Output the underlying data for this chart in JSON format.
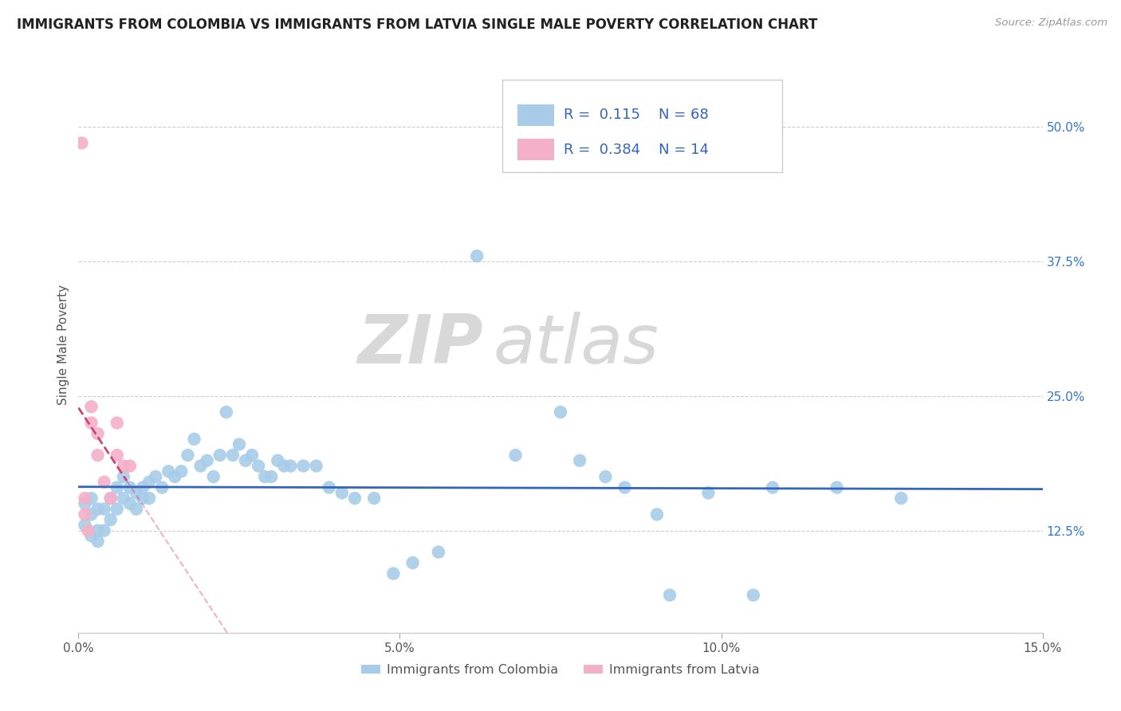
{
  "title": "IMMIGRANTS FROM COLOMBIA VS IMMIGRANTS FROM LATVIA SINGLE MALE POVERTY CORRELATION CHART",
  "source": "Source: ZipAtlas.com",
  "ylabel": "Single Male Poverty",
  "xlim": [
    0,
    0.15
  ],
  "ylim": [
    0.03,
    0.565
  ],
  "xticks": [
    0.0,
    0.05,
    0.1,
    0.15
  ],
  "xticklabels": [
    "0.0%",
    "5.0%",
    "10.0%",
    "15.0%"
  ],
  "yticks_right": [
    0.125,
    0.25,
    0.375,
    0.5
  ],
  "ytick_labels_right": [
    "12.5%",
    "25.0%",
    "37.5%",
    "50.0%"
  ],
  "colombia_color": "#a8cce8",
  "latvia_color": "#f4b0c8",
  "trendline_colombia_color": "#3366bb",
  "trendline_latvia_color": "#cc4477",
  "watermark_zip": "ZIP",
  "watermark_atlas": "atlas",
  "legend_R_colombia": "0.115",
  "legend_N_colombia": "68",
  "legend_R_latvia": "0.384",
  "legend_N_latvia": "14",
  "colombia_x": [
    0.001,
    0.001,
    0.002,
    0.002,
    0.002,
    0.003,
    0.003,
    0.003,
    0.004,
    0.004,
    0.005,
    0.005,
    0.006,
    0.006,
    0.007,
    0.007,
    0.008,
    0.008,
    0.009,
    0.009,
    0.01,
    0.01,
    0.011,
    0.011,
    0.012,
    0.013,
    0.014,
    0.015,
    0.016,
    0.017,
    0.018,
    0.019,
    0.02,
    0.021,
    0.022,
    0.023,
    0.024,
    0.025,
    0.026,
    0.027,
    0.028,
    0.029,
    0.03,
    0.031,
    0.032,
    0.033,
    0.035,
    0.037,
    0.039,
    0.041,
    0.043,
    0.046,
    0.049,
    0.052,
    0.056,
    0.062,
    0.068,
    0.075,
    0.082,
    0.09,
    0.098,
    0.108,
    0.118,
    0.128,
    0.078,
    0.085,
    0.092,
    0.105
  ],
  "colombia_y": [
    0.15,
    0.13,
    0.155,
    0.14,
    0.12,
    0.145,
    0.125,
    0.115,
    0.145,
    0.125,
    0.155,
    0.135,
    0.165,
    0.145,
    0.175,
    0.155,
    0.165,
    0.15,
    0.16,
    0.145,
    0.165,
    0.155,
    0.17,
    0.155,
    0.175,
    0.165,
    0.18,
    0.175,
    0.18,
    0.195,
    0.21,
    0.185,
    0.19,
    0.175,
    0.195,
    0.235,
    0.195,
    0.205,
    0.19,
    0.195,
    0.185,
    0.175,
    0.175,
    0.19,
    0.185,
    0.185,
    0.185,
    0.185,
    0.165,
    0.16,
    0.155,
    0.155,
    0.085,
    0.095,
    0.105,
    0.38,
    0.195,
    0.235,
    0.175,
    0.14,
    0.16,
    0.165,
    0.165,
    0.155,
    0.19,
    0.165,
    0.065,
    0.065
  ],
  "latvia_x": [
    0.0005,
    0.001,
    0.001,
    0.0015,
    0.002,
    0.002,
    0.003,
    0.003,
    0.004,
    0.005,
    0.006,
    0.006,
    0.007,
    0.008
  ],
  "latvia_y": [
    0.485,
    0.155,
    0.14,
    0.125,
    0.24,
    0.225,
    0.215,
    0.195,
    0.17,
    0.155,
    0.225,
    0.195,
    0.185,
    0.185
  ],
  "latvia_trendline_x": [
    0.0,
    0.0095
  ],
  "colombia_trendline_x": [
    0.0,
    0.15
  ]
}
